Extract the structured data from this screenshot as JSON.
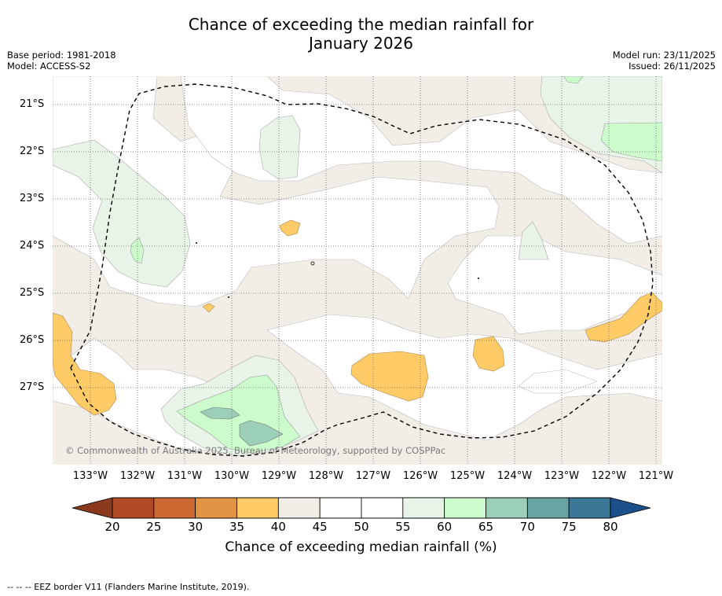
{
  "title_line1": "Chance of exceeding the median rainfall for",
  "title_line2": "January 2026",
  "meta_left": {
    "base_period": "Base period: 1981-2018",
    "model": "Model: ACCESS-S2"
  },
  "meta_right": {
    "model_run": "Model run: 23/11/2025",
    "issued": "Issued: 26/11/2025"
  },
  "lat_labels": [
    "21°S",
    "22°S",
    "23°S",
    "24°S",
    "25°S",
    "26°S",
    "27°S"
  ],
  "lon_labels": [
    "133°W",
    "132°W",
    "131°W",
    "130°W",
    "129°W",
    "128°W",
    "127°W",
    "126°W",
    "125°W",
    "124°W",
    "123°W",
    "122°W",
    "121°W"
  ],
  "copyright": "© Commonwealth of Australia 2025, Bureau of Meteorology, supported by COSPPac",
  "colorbar": {
    "ticks": [
      "20",
      "25",
      "30",
      "35",
      "40",
      "45",
      "50",
      "55",
      "60",
      "65",
      "70",
      "75",
      "80"
    ],
    "colors": [
      "#b04a25",
      "#cd6a33",
      "#e09444",
      "#fecb66",
      "#f2ede7",
      "#ffffff",
      "#ffffff",
      "#e9f4e9",
      "#ccfccc",
      "#9ccfb8",
      "#6aa3a3",
      "#3b7797"
    ],
    "under_color": "#8c3a1e",
    "over_color": "#1b508a",
    "label": "Chance of exceeding median rainfall (%)"
  },
  "footer": "--  --  -- EEZ border V11 (Flanders Marine Institute, 2019)."
}
